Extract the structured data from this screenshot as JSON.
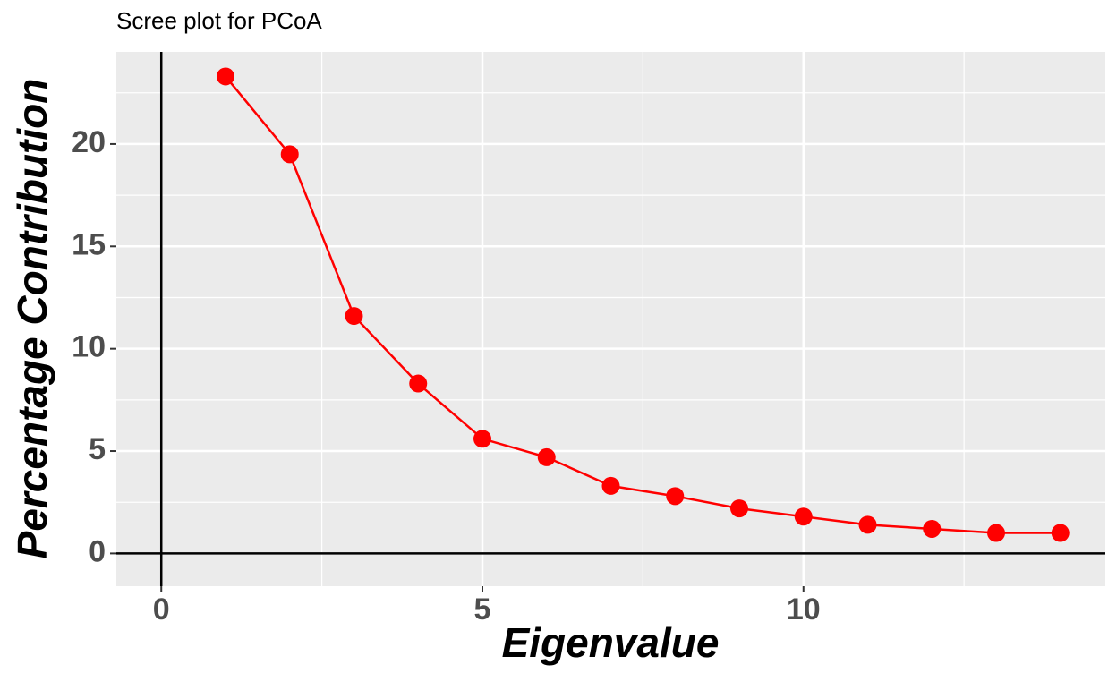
{
  "chart_data": {
    "type": "line",
    "title": "Scree plot for PCoA",
    "x_label": "Eigenvalue",
    "y_label": "Percentage Contribution",
    "x": [
      1,
      2,
      3,
      4,
      5,
      6,
      7,
      8,
      9,
      10,
      11,
      12,
      13,
      14
    ],
    "series": [
      {
        "color": "#ff0000",
        "values": [
          23.3,
          19.5,
          11.6,
          8.3,
          5.6,
          4.7,
          3.3,
          2.8,
          2.2,
          1.8,
          1.4,
          1.2,
          1.0,
          1.0
        ]
      }
    ],
    "xlim": [
      -0.7,
      14.7
    ],
    "ylim": [
      -1.6,
      24.5
    ],
    "xticks": [
      0,
      5,
      10
    ],
    "yticks": [
      0,
      5,
      10,
      15,
      20
    ],
    "hline": 0,
    "vline": 0,
    "grid": true,
    "background": "#ebebeb"
  }
}
